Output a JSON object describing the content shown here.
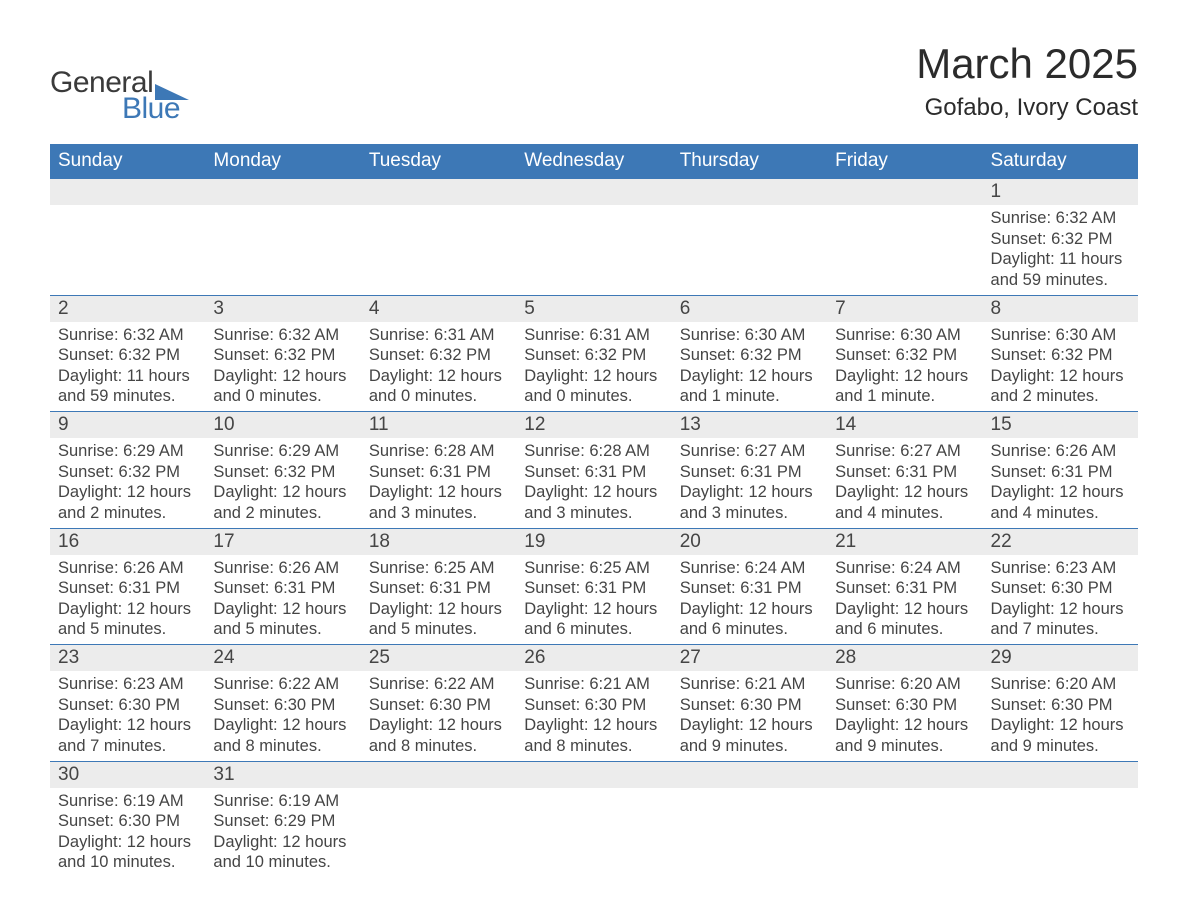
{
  "logo": {
    "text1": "General",
    "text2": "Blue"
  },
  "title": "March 2025",
  "location": "Gofabo, Ivory Coast",
  "colors": {
    "header_bg": "#3d78b6",
    "header_text": "#ffffff",
    "daynum_bg": "#ececec",
    "border": "#3d78b6",
    "body_text": "#454545",
    "logo_blue": "#3d78b6"
  },
  "day_headers": [
    "Sunday",
    "Monday",
    "Tuesday",
    "Wednesday",
    "Thursday",
    "Friday",
    "Saturday"
  ],
  "weeks": [
    [
      null,
      null,
      null,
      null,
      null,
      null,
      {
        "n": "1",
        "sunrise": "Sunrise: 6:32 AM",
        "sunset": "Sunset: 6:32 PM",
        "daylight": "Daylight: 11 hours and 59 minutes."
      }
    ],
    [
      {
        "n": "2",
        "sunrise": "Sunrise: 6:32 AM",
        "sunset": "Sunset: 6:32 PM",
        "daylight": "Daylight: 11 hours and 59 minutes."
      },
      {
        "n": "3",
        "sunrise": "Sunrise: 6:32 AM",
        "sunset": "Sunset: 6:32 PM",
        "daylight": "Daylight: 12 hours and 0 minutes."
      },
      {
        "n": "4",
        "sunrise": "Sunrise: 6:31 AM",
        "sunset": "Sunset: 6:32 PM",
        "daylight": "Daylight: 12 hours and 0 minutes."
      },
      {
        "n": "5",
        "sunrise": "Sunrise: 6:31 AM",
        "sunset": "Sunset: 6:32 PM",
        "daylight": "Daylight: 12 hours and 0 minutes."
      },
      {
        "n": "6",
        "sunrise": "Sunrise: 6:30 AM",
        "sunset": "Sunset: 6:32 PM",
        "daylight": "Daylight: 12 hours and 1 minute."
      },
      {
        "n": "7",
        "sunrise": "Sunrise: 6:30 AM",
        "sunset": "Sunset: 6:32 PM",
        "daylight": "Daylight: 12 hours and 1 minute."
      },
      {
        "n": "8",
        "sunrise": "Sunrise: 6:30 AM",
        "sunset": "Sunset: 6:32 PM",
        "daylight": "Daylight: 12 hours and 2 minutes."
      }
    ],
    [
      {
        "n": "9",
        "sunrise": "Sunrise: 6:29 AM",
        "sunset": "Sunset: 6:32 PM",
        "daylight": "Daylight: 12 hours and 2 minutes."
      },
      {
        "n": "10",
        "sunrise": "Sunrise: 6:29 AM",
        "sunset": "Sunset: 6:32 PM",
        "daylight": "Daylight: 12 hours and 2 minutes."
      },
      {
        "n": "11",
        "sunrise": "Sunrise: 6:28 AM",
        "sunset": "Sunset: 6:31 PM",
        "daylight": "Daylight: 12 hours and 3 minutes."
      },
      {
        "n": "12",
        "sunrise": "Sunrise: 6:28 AM",
        "sunset": "Sunset: 6:31 PM",
        "daylight": "Daylight: 12 hours and 3 minutes."
      },
      {
        "n": "13",
        "sunrise": "Sunrise: 6:27 AM",
        "sunset": "Sunset: 6:31 PM",
        "daylight": "Daylight: 12 hours and 3 minutes."
      },
      {
        "n": "14",
        "sunrise": "Sunrise: 6:27 AM",
        "sunset": "Sunset: 6:31 PM",
        "daylight": "Daylight: 12 hours and 4 minutes."
      },
      {
        "n": "15",
        "sunrise": "Sunrise: 6:26 AM",
        "sunset": "Sunset: 6:31 PM",
        "daylight": "Daylight: 12 hours and 4 minutes."
      }
    ],
    [
      {
        "n": "16",
        "sunrise": "Sunrise: 6:26 AM",
        "sunset": "Sunset: 6:31 PM",
        "daylight": "Daylight: 12 hours and 5 minutes."
      },
      {
        "n": "17",
        "sunrise": "Sunrise: 6:26 AM",
        "sunset": "Sunset: 6:31 PM",
        "daylight": "Daylight: 12 hours and 5 minutes."
      },
      {
        "n": "18",
        "sunrise": "Sunrise: 6:25 AM",
        "sunset": "Sunset: 6:31 PM",
        "daylight": "Daylight: 12 hours and 5 minutes."
      },
      {
        "n": "19",
        "sunrise": "Sunrise: 6:25 AM",
        "sunset": "Sunset: 6:31 PM",
        "daylight": "Daylight: 12 hours and 6 minutes."
      },
      {
        "n": "20",
        "sunrise": "Sunrise: 6:24 AM",
        "sunset": "Sunset: 6:31 PM",
        "daylight": "Daylight: 12 hours and 6 minutes."
      },
      {
        "n": "21",
        "sunrise": "Sunrise: 6:24 AM",
        "sunset": "Sunset: 6:31 PM",
        "daylight": "Daylight: 12 hours and 6 minutes."
      },
      {
        "n": "22",
        "sunrise": "Sunrise: 6:23 AM",
        "sunset": "Sunset: 6:30 PM",
        "daylight": "Daylight: 12 hours and 7 minutes."
      }
    ],
    [
      {
        "n": "23",
        "sunrise": "Sunrise: 6:23 AM",
        "sunset": "Sunset: 6:30 PM",
        "daylight": "Daylight: 12 hours and 7 minutes."
      },
      {
        "n": "24",
        "sunrise": "Sunrise: 6:22 AM",
        "sunset": "Sunset: 6:30 PM",
        "daylight": "Daylight: 12 hours and 8 minutes."
      },
      {
        "n": "25",
        "sunrise": "Sunrise: 6:22 AM",
        "sunset": "Sunset: 6:30 PM",
        "daylight": "Daylight: 12 hours and 8 minutes."
      },
      {
        "n": "26",
        "sunrise": "Sunrise: 6:21 AM",
        "sunset": "Sunset: 6:30 PM",
        "daylight": "Daylight: 12 hours and 8 minutes."
      },
      {
        "n": "27",
        "sunrise": "Sunrise: 6:21 AM",
        "sunset": "Sunset: 6:30 PM",
        "daylight": "Daylight: 12 hours and 9 minutes."
      },
      {
        "n": "28",
        "sunrise": "Sunrise: 6:20 AM",
        "sunset": "Sunset: 6:30 PM",
        "daylight": "Daylight: 12 hours and 9 minutes."
      },
      {
        "n": "29",
        "sunrise": "Sunrise: 6:20 AM",
        "sunset": "Sunset: 6:30 PM",
        "daylight": "Daylight: 12 hours and 9 minutes."
      }
    ],
    [
      {
        "n": "30",
        "sunrise": "Sunrise: 6:19 AM",
        "sunset": "Sunset: 6:30 PM",
        "daylight": "Daylight: 12 hours and 10 minutes."
      },
      {
        "n": "31",
        "sunrise": "Sunrise: 6:19 AM",
        "sunset": "Sunset: 6:29 PM",
        "daylight": "Daylight: 12 hours and 10 minutes."
      },
      null,
      null,
      null,
      null,
      null
    ]
  ]
}
